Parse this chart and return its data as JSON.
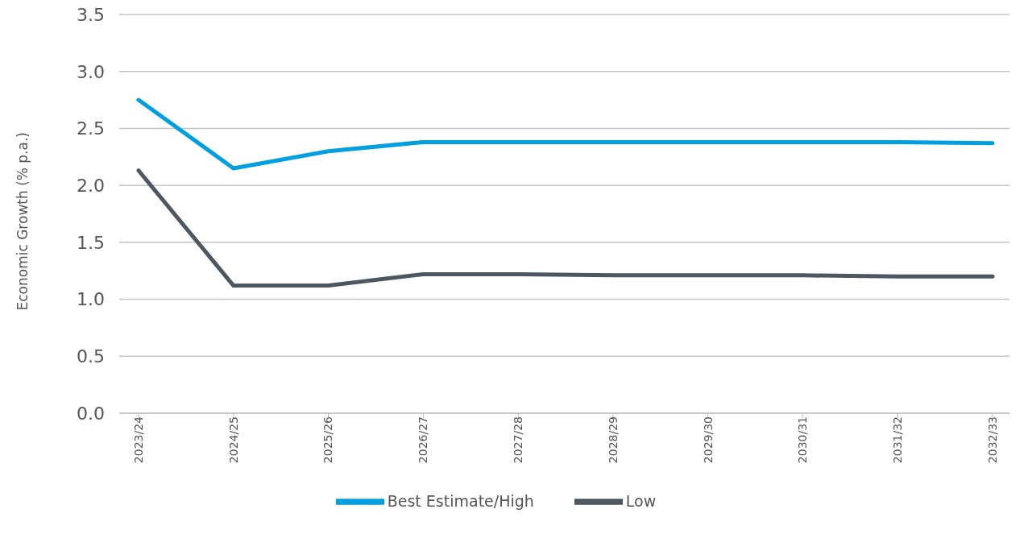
{
  "chart_data": {
    "type": "line",
    "ylabel": "Economic Growth (% p.a.)",
    "categories": [
      "2023/24",
      "2024/25",
      "2025/26",
      "2026/27",
      "2027/28",
      "2028/29",
      "2029/30",
      "2030/31",
      "2031/32",
      "2032/33"
    ],
    "series": [
      {
        "name": "Low",
        "color": "#4d5761",
        "values": [
          2.13,
          1.12,
          1.12,
          1.22,
          1.22,
          1.21,
          1.21,
          1.21,
          1.2,
          1.2
        ]
      },
      {
        "name": "Best Estimate/High",
        "color": "#009fdf",
        "values": [
          2.75,
          2.15,
          2.3,
          2.38,
          2.38,
          2.38,
          2.38,
          2.38,
          2.38,
          2.37
        ]
      }
    ],
    "ylim": [
      0,
      3.5
    ],
    "yticks": [
      {
        "value": 0,
        "label": "0.0"
      },
      {
        "value": 0.5,
        "label": "0.5"
      },
      {
        "value": 1,
        "label": "1.0"
      },
      {
        "value": 1.5,
        "label": "1.5"
      },
      {
        "value": 2,
        "label": "2.0"
      },
      {
        "value": 2.5,
        "label": "2.5"
      },
      {
        "value": 3,
        "label": "3.0"
      },
      {
        "value": 3.5,
        "label": "3.5"
      }
    ],
    "grid": "y",
    "legend": "bottom",
    "marker": "none",
    "line_style": "solid"
  }
}
